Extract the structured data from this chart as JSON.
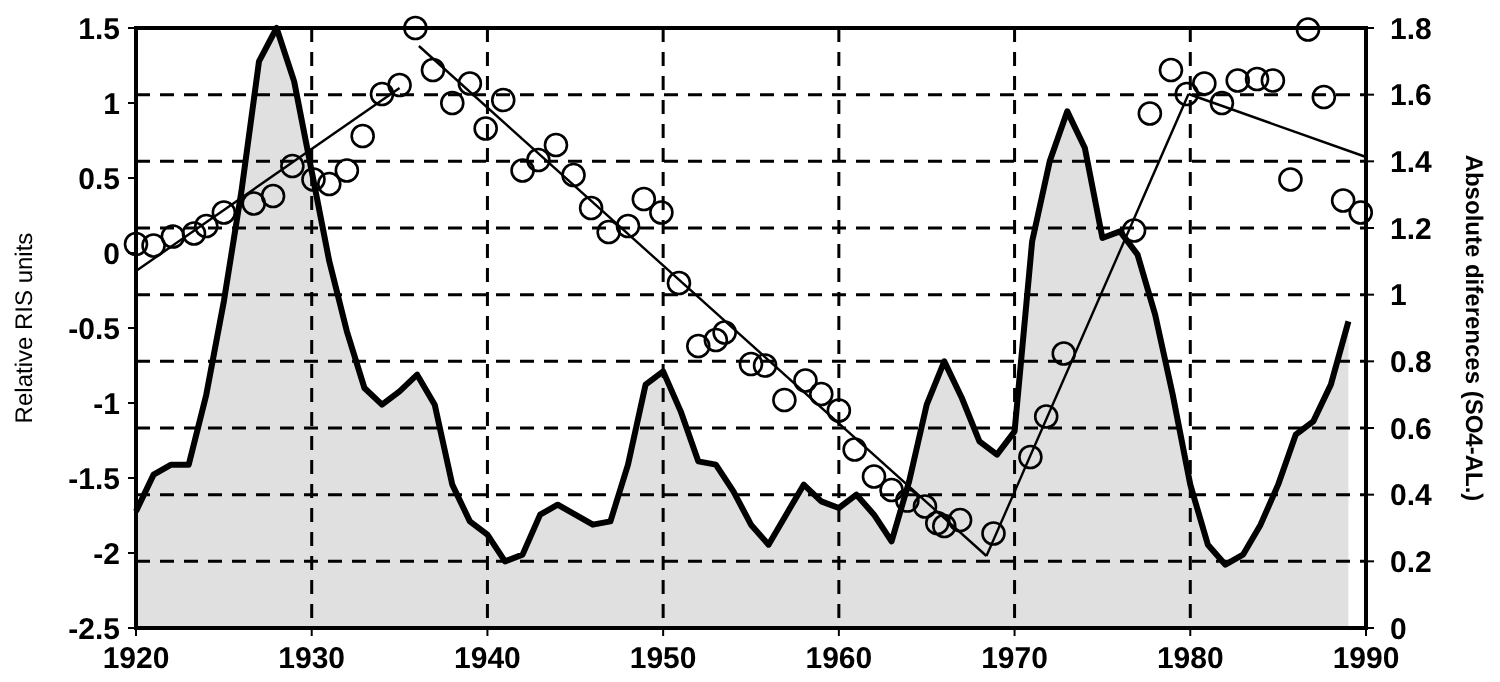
{
  "chart_data": {
    "type": "line",
    "ylabel": "Relative RIS units",
    "y2label": "Absolute diferences (SO4-AL.)",
    "xlim": [
      1920,
      1990
    ],
    "xticks": [
      1920,
      1930,
      1940,
      1950,
      1960,
      1970,
      1980,
      1990
    ],
    "ylim": [
      -2.5,
      1.5
    ],
    "yticks": [
      -2.5,
      -2,
      -1.5,
      -1,
      -0.5,
      0,
      0.5,
      1,
      1.5
    ],
    "y2lim": [
      0,
      1.8
    ],
    "y2ticks": [
      0,
      0.2,
      0.4,
      0.6,
      0.8,
      1,
      1.2,
      1.4,
      1.6,
      1.8
    ],
    "grid": true,
    "series": [
      {
        "type": "area",
        "axis": "y2",
        "color": "#e0e0e0",
        "x": [
          1920,
          1921,
          1922,
          1923,
          1924,
          1925,
          1926,
          1927,
          1928,
          1929,
          1930,
          1931,
          1932,
          1933,
          1934,
          1935,
          1936,
          1937,
          1938,
          1939,
          1940,
          1941,
          1942,
          1943,
          1944,
          1945,
          1946,
          1947,
          1948,
          1949,
          1950,
          1951,
          1952,
          1953,
          1954,
          1955,
          1956,
          1957,
          1958,
          1959,
          1960,
          1961,
          1962,
          1963,
          1964,
          1965,
          1966,
          1967,
          1968,
          1969,
          1970,
          1971,
          1972,
          1973,
          1974,
          1975,
          1976,
          1977,
          1978,
          1979,
          1980,
          1981,
          1982,
          1983,
          1984,
          1985,
          1986,
          1987,
          1988,
          1989
        ],
        "values": [
          0.35,
          0.46,
          0.49,
          0.49,
          0.7,
          0.98,
          1.31,
          1.7,
          1.8,
          1.64,
          1.37,
          1.1,
          0.89,
          0.72,
          0.67,
          0.71,
          0.76,
          0.67,
          0.43,
          0.32,
          0.28,
          0.2,
          0.22,
          0.34,
          0.37,
          0.34,
          0.31,
          0.32,
          0.49,
          0.73,
          0.77,
          0.65,
          0.5,
          0.49,
          0.41,
          0.31,
          0.25,
          0.34,
          0.43,
          0.38,
          0.36,
          0.4,
          0.34,
          0.26,
          0.44,
          0.67,
          0.8,
          0.69,
          0.56,
          0.52,
          0.59,
          1.16,
          1.4,
          1.55,
          1.44,
          1.17,
          1.19,
          1.12,
          0.94,
          0.7,
          0.43,
          0.25,
          0.19,
          0.22,
          0.31,
          0.43,
          0.58,
          0.62,
          0.73,
          0.92
        ]
      },
      {
        "type": "scatter",
        "marker": "circle",
        "color": "#000000",
        "x": [
          1920,
          1921,
          1922.1,
          1923.3,
          1924,
          1925,
          1926.7,
          1927.8,
          1928.9,
          1930.1,
          1931,
          1932,
          1932.9,
          1934,
          1935,
          1935.9,
          1936.9,
          1938,
          1939,
          1939.9,
          1940.9,
          1942,
          1942.9,
          1943.9,
          1944.9,
          1945.9,
          1946.9,
          1948,
          1948.9,
          1949.9,
          1950.9,
          1952,
          1953,
          1953.5,
          1955,
          1955.8,
          1956.9,
          1958.1,
          1959,
          1960,
          1960.9,
          1962,
          1963,
          1963.9,
          1964.9,
          1965.6,
          1966,
          1966.9,
          1968.8,
          1970.9,
          1971.8,
          1972.8,
          1976.8,
          1977.7,
          1978.9,
          1979.8,
          1980.8,
          1981.8,
          1982.7,
          1983.8,
          1984.7,
          1985.7,
          1986.7,
          1987.6,
          1988.7,
          1989.7
        ],
        "values": [
          0.06,
          0.05,
          0.11,
          0.13,
          0.18,
          0.27,
          0.33,
          0.38,
          0.58,
          0.49,
          0.46,
          0.55,
          0.78,
          1.06,
          1.12,
          1.5,
          1.22,
          1,
          1.13,
          0.83,
          1.02,
          0.55,
          0.62,
          0.72,
          0.52,
          0.3,
          0.14,
          0.18,
          0.36,
          0.27,
          -0.2,
          -0.62,
          -0.58,
          -0.53,
          -0.74,
          -0.75,
          -0.98,
          -0.85,
          -0.94,
          -1.05,
          -1.31,
          -1.49,
          -1.58,
          -1.65,
          -1.69,
          -1.8,
          -1.82,
          -1.78,
          -1.87,
          -1.36,
          -1.09,
          -0.67,
          0.15,
          0.93,
          1.22,
          1.06,
          1.13,
          1,
          1.15,
          1.16,
          1.15,
          0.49,
          1.49,
          1.04,
          0.35,
          0.27
        ]
      },
      {
        "marker": "none",
        "color": "#000000",
        "x": [
          1920,
          1935
        ],
        "values": [
          -0.12,
          1.1
        ]
      },
      {
        "marker": "none",
        "color": "#000000",
        "x": [
          1936.1,
          1968.4
        ],
        "values": [
          1.38,
          -2.02
        ]
      },
      {
        "marker": "none",
        "color": "#000000",
        "x": [
          1968.4,
          1979.9
        ],
        "values": [
          -2.02,
          1.06
        ]
      },
      {
        "marker": "none",
        "color": "#000000",
        "x": [
          1979.9,
          1990
        ],
        "values": [
          1.06,
          0.64
        ]
      }
    ]
  }
}
